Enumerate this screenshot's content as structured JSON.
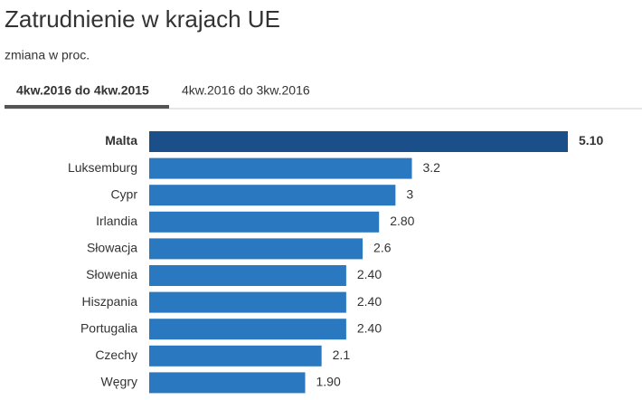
{
  "chart_data": {
    "type": "hbar",
    "title": "Zatrudnienie w krajach UE",
    "subtitle": "zmiana w proc.",
    "categories": [
      "Malta",
      "Luksemburg",
      "Cypr",
      "Irlandia",
      "Słowacja",
      "Słowenia",
      "Hiszpania",
      "Portugalia",
      "Czechy",
      "Węgry"
    ],
    "values": [
      5.1,
      3.2,
      3,
      2.8,
      2.6,
      2.4,
      2.4,
      2.4,
      2.1,
      1.9
    ],
    "value_labels": [
      "5.10",
      "3.2",
      "3",
      "2.80",
      "2.6",
      "2.40",
      "2.40",
      "2.40",
      "2.1",
      "1.90"
    ],
    "colors": [
      "#1b4f8a",
      "#2a78c0",
      "#2a78c0",
      "#2a78c0",
      "#2a78c0",
      "#2a78c0",
      "#2a78c0",
      "#2a78c0",
      "#2a78c0",
      "#2a78c0"
    ]
  },
  "tabs": [
    "4kw.2016 do 4kw.2015",
    "4kw.2016 do 3kw.2016"
  ]
}
